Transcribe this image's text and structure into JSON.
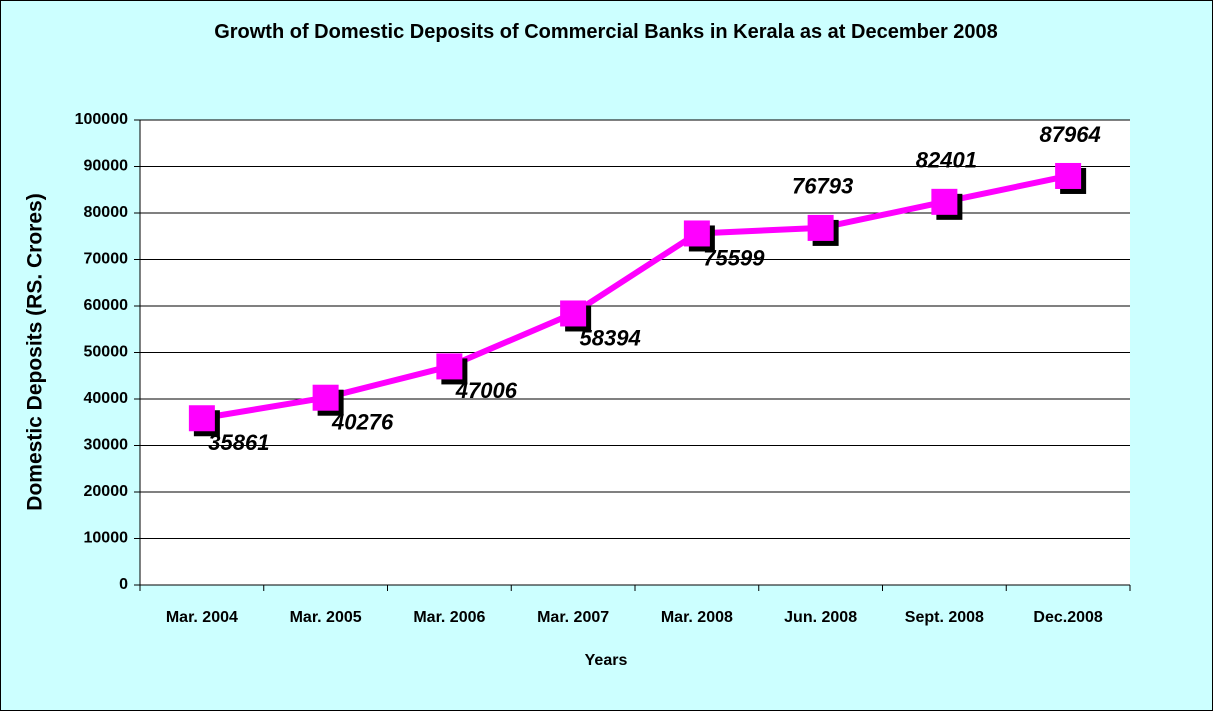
{
  "chart_data": {
    "type": "line",
    "title": "Growth of Domestic Deposits of Commercial Banks in Kerala as at December 2008",
    "x_label": "Years",
    "y_label": "Domestic Deposits (RS. Crores)",
    "categories": [
      "Mar. 2004",
      "Mar. 2005",
      "Mar. 2006",
      "Mar. 2007",
      "Mar. 2008",
      "Jun. 2008",
      "Sept. 2008",
      "Dec.2008"
    ],
    "series": [
      {
        "name": "Domestic Deposits",
        "color": "#ff00ff",
        "values": [
          35861,
          40276,
          47006,
          58394,
          75599,
          76793,
          82401,
          87964
        ]
      }
    ],
    "ylim": [
      0,
      100000
    ],
    "yticks": [
      0,
      10000,
      20000,
      30000,
      40000,
      50000,
      60000,
      70000,
      80000,
      90000,
      100000
    ],
    "grid": true
  }
}
